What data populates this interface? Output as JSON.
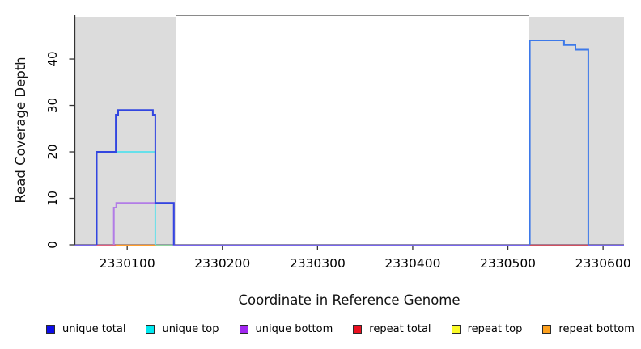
{
  "chart_data": {
    "type": "line",
    "title": "",
    "x_axis": {
      "label": "Coordinate in Reference Genome",
      "ticks": [
        2330100,
        2330200,
        2330300,
        2330400,
        2330500,
        2330600
      ],
      "range": [
        2330045,
        2330622
      ]
    },
    "y_axis": {
      "label": "Read Coverage Depth",
      "ticks": [
        0,
        10,
        20,
        30,
        40
      ],
      "range": [
        0,
        49.4
      ]
    },
    "shaded_regions": [
      {
        "name": "shaded-region-left",
        "x": [
          2330045,
          2330151
        ],
        "color": "#dcdcdc"
      },
      {
        "name": "shaded-region-right",
        "x": [
          2330522,
          2330622
        ],
        "color": "#dcdcdc"
      }
    ],
    "top_border_segment": {
      "x": [
        2330151,
        2330522
      ],
      "color": "#7a7a7a"
    },
    "series": [
      {
        "name": "unique top",
        "line_color": "#66e0ea",
        "points": [
          [
            2330068,
            0
          ],
          [
            2330068,
            20
          ],
          [
            2330129.5,
            20
          ],
          [
            2330129.5,
            0
          ]
        ]
      },
      {
        "name": "unique bottom",
        "line_color": "#b27ce6",
        "points": [
          [
            2330086,
            0
          ],
          [
            2330086,
            8
          ],
          [
            2330088.5,
            8
          ],
          [
            2330088.5,
            9
          ],
          [
            2330149,
            9
          ],
          [
            2330149,
            0
          ]
        ]
      },
      {
        "name": "unique total",
        "line_color": "#3246e0",
        "points": [
          [
            2330068,
            0
          ],
          [
            2330068,
            20
          ],
          [
            2330088,
            20
          ],
          [
            2330088,
            28
          ],
          [
            2330090.5,
            28
          ],
          [
            2330090.5,
            29
          ],
          [
            2330127,
            29
          ],
          [
            2330127,
            28
          ],
          [
            2330129.5,
            28
          ],
          [
            2330129.5,
            9
          ],
          [
            2330149,
            9
          ],
          [
            2330149,
            0
          ]
        ]
      },
      {
        "name": "unique total",
        "line_color": "#3d79e9",
        "points": [
          [
            2330523,
            0
          ],
          [
            2330523,
            44
          ],
          [
            2330559,
            44
          ],
          [
            2330559,
            43
          ],
          [
            2330571,
            43
          ],
          [
            2330571,
            42
          ],
          [
            2330584.5,
            42
          ],
          [
            2330584.5,
            0
          ]
        ]
      }
    ],
    "baseline_segments": [
      {
        "name": "baseline",
        "x": [
          2330045,
          2330622
        ],
        "color": "#7866ec"
      },
      {
        "name": "repeat total left",
        "x": [
          2330068,
          2330088
        ],
        "color": "#e0627f"
      },
      {
        "name": "repeat bottom",
        "x": [
          2330088,
          2330130
        ],
        "color": "#ff9e2c"
      },
      {
        "name": "repeat top",
        "x": [
          2330130,
          2330148
        ],
        "color": "#90d49e"
      },
      {
        "name": "repeat total right",
        "x": [
          2330523,
          2330584.5
        ],
        "color": "#d05060"
      }
    ],
    "legend": [
      {
        "label": "unique total",
        "color": "#0d0de8"
      },
      {
        "label": "unique top",
        "color": "#00e8f0"
      },
      {
        "label": "unique bottom",
        "color": "#a128f0"
      },
      {
        "label": "repeat total",
        "color": "#ea1020"
      },
      {
        "label": "repeat top",
        "color": "#fafa28"
      },
      {
        "label": "repeat bottom",
        "color": "#fca01e"
      }
    ]
  }
}
